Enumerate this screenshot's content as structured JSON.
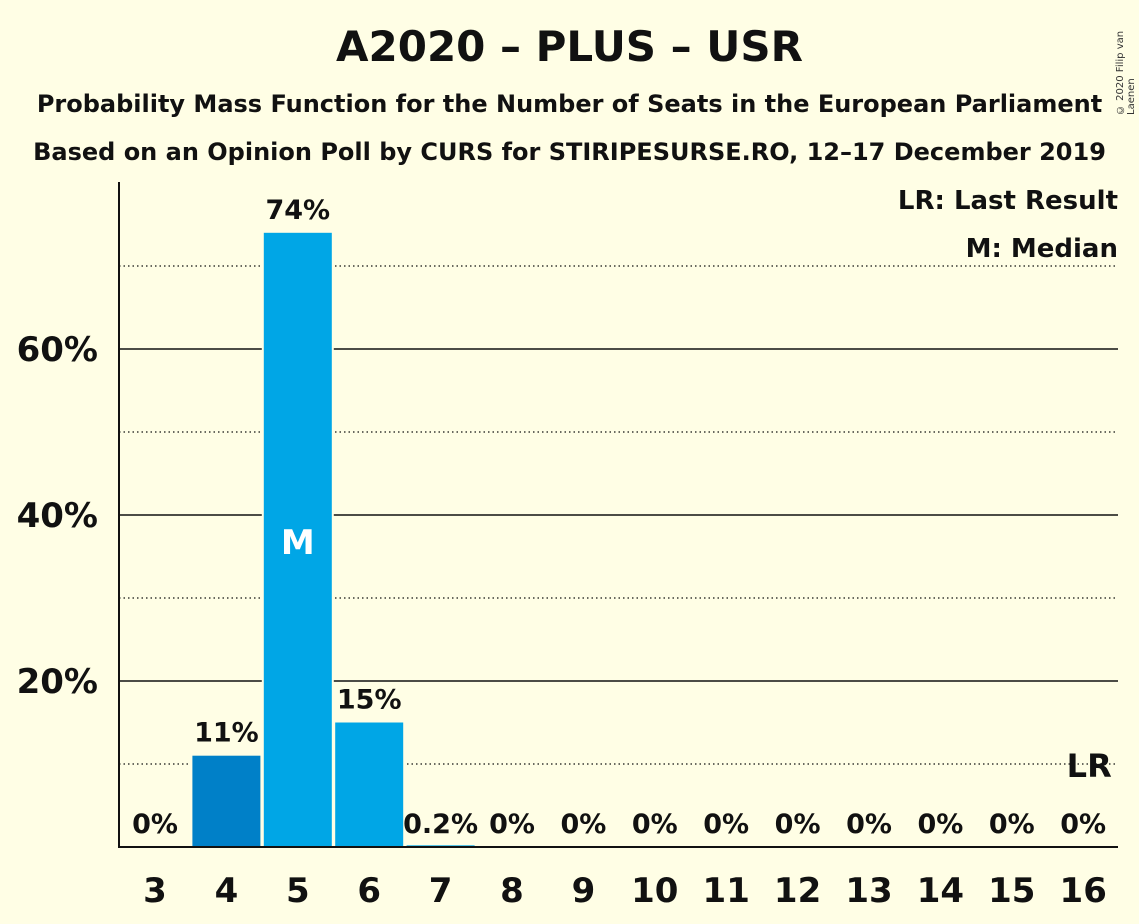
{
  "title": "A2020 – PLUS – USR",
  "subtitle_1": "Probability Mass Function for the Number of Seats in the European Parliament",
  "subtitle_2": "Based on an Opinion Poll by CURS for STIRIPESURSE.RO, 12–17 December 2019",
  "copyright": "© 2020 Filip van Laenen",
  "legend": {
    "last_result": "LR: Last Result",
    "median": "M: Median"
  },
  "colors": {
    "background": "#FFFEE5",
    "bar": "#00A6E6",
    "bar_dark": "#0080C8"
  },
  "chart_data": {
    "type": "bar",
    "categories": [
      "3",
      "4",
      "5",
      "6",
      "7",
      "8",
      "9",
      "10",
      "11",
      "12",
      "13",
      "14",
      "15",
      "16"
    ],
    "values": [
      0,
      11,
      74,
      15,
      0.2,
      0,
      0,
      0,
      0,
      0,
      0,
      0,
      0,
      0
    ],
    "labels": [
      "0%",
      "11%",
      "74%",
      "15%",
      "0.2%",
      "0%",
      "0%",
      "0%",
      "0%",
      "0%",
      "0%",
      "0%",
      "0%",
      "0%"
    ],
    "highlight_category": "4",
    "median_category": "5",
    "median_label": "M",
    "last_result_category": "16",
    "last_result_label": "LR",
    "ylim": [
      0,
      80
    ],
    "yticks": [
      20,
      40,
      60
    ],
    "ytick_labels": [
      "20%",
      "40%",
      "60%"
    ],
    "minor_gridlines": [
      10,
      30,
      50,
      70
    ],
    "xlabel": "",
    "ylabel": ""
  }
}
